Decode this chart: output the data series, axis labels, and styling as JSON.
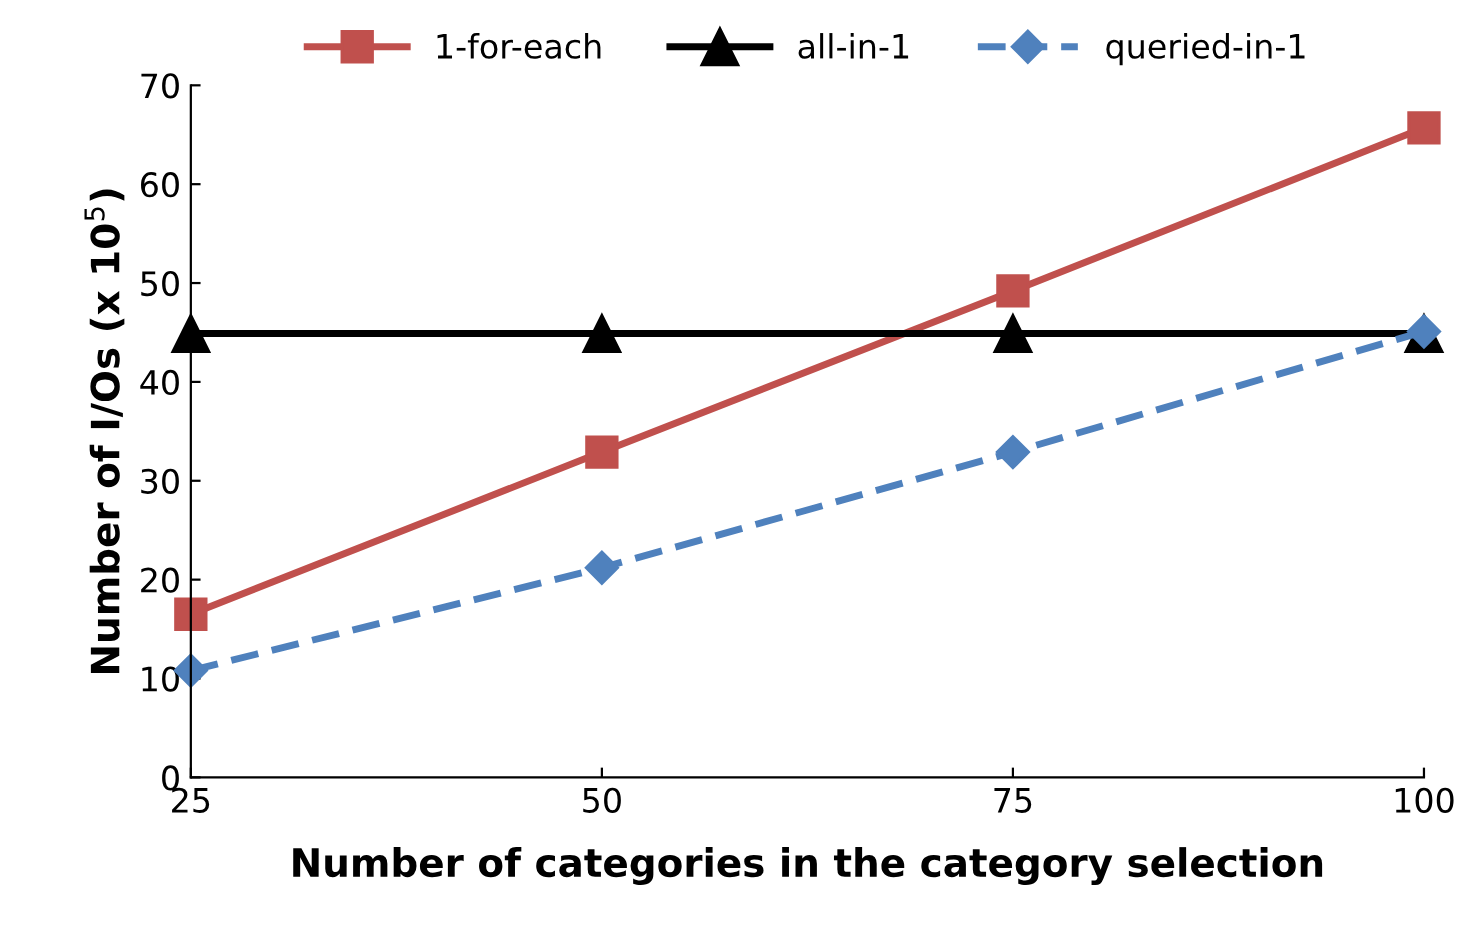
{
  "chart_data": {
    "type": "line",
    "xlabel": "Number of categories in the category selection",
    "ylabel": "Number of I/Os (x 10$^{5}$)",
    "x": [
      25,
      50,
      75,
      100
    ],
    "xlim": [
      25,
      100
    ],
    "xticks": [
      25,
      50,
      75,
      100
    ],
    "ylim": [
      0,
      70
    ],
    "yticks": [
      0,
      10,
      20,
      30,
      40,
      50,
      60,
      70
    ],
    "grid": false,
    "legend": "top",
    "series": [
      {
        "name": "1-for-each",
        "color": "#c0504d",
        "values": [
          16.5,
          32.9,
          49.2,
          65.7
        ],
        "marker": "square",
        "line_style": "solid"
      },
      {
        "name": "all-in-1",
        "color": "#000000",
        "values": [
          44.9,
          44.9,
          44.9,
          44.9
        ],
        "marker": "triangle",
        "line_style": "solid"
      },
      {
        "name": "queried-in-1",
        "color": "#4f81bd",
        "values": [
          10.8,
          21.2,
          32.9,
          45.1
        ],
        "marker": "diamond",
        "line_style": "dashed"
      }
    ]
  }
}
